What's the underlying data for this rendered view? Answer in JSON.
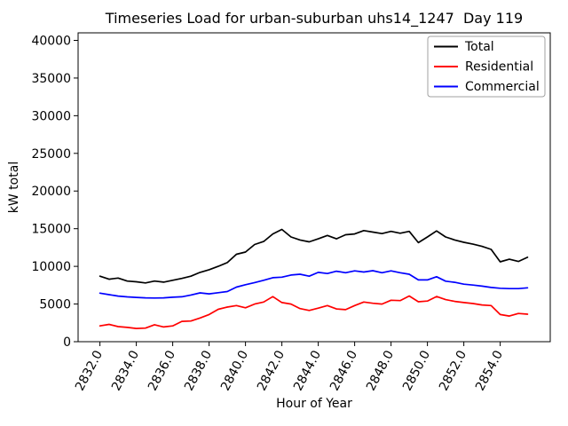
{
  "figure": {
    "background": "#ffffff"
  },
  "chart_data": {
    "type": "line",
    "title": "Timeseries Load for urban-suburban uhs14_1247  Day 119",
    "xlabel": "Hour of Year",
    "ylabel": "kW total",
    "xlim": [
      2830.8,
      2856.75
    ],
    "ylim": [
      0,
      41000
    ],
    "grid": false,
    "legend_position": "upper right",
    "xticks": {
      "values": [
        2832,
        2834,
        2836,
        2838,
        2840,
        2842,
        2844,
        2846,
        2848,
        2850,
        2852,
        2854
      ],
      "labels": [
        "2832.0",
        "2834.0",
        "2836.0",
        "2838.0",
        "2840.0",
        "2842.0",
        "2844.0",
        "2846.0",
        "2848.0",
        "2850.0",
        "2852.0",
        "2854.0"
      ]
    },
    "yticks": {
      "values": [
        0,
        5000,
        10000,
        15000,
        20000,
        25000,
        30000,
        35000,
        40000
      ],
      "labels": [
        "0",
        "5000",
        "10000",
        "15000",
        "20000",
        "25000",
        "30000",
        "35000",
        "40000"
      ]
    },
    "x": [
      2832,
      2832.5,
      2833,
      2833.5,
      2834,
      2834.5,
      2835,
      2835.5,
      2836,
      2836.5,
      2837,
      2837.5,
      2838,
      2838.5,
      2839,
      2839.5,
      2840,
      2840.5,
      2841,
      2841.5,
      2842,
      2842.5,
      2843,
      2843.5,
      2844,
      2844.5,
      2845,
      2845.5,
      2846,
      2846.5,
      2847,
      2847.5,
      2848,
      2848.5,
      2849,
      2849.5,
      2850,
      2850.5,
      2851,
      2851.5,
      2852,
      2852.5,
      2853,
      2853.5,
      2854,
      2854.5,
      2855,
      2855.5
    ],
    "series": [
      {
        "name": "Total",
        "color": "#000000",
        "values": [
          8700,
          8300,
          8450,
          8050,
          7950,
          7800,
          8050,
          7900,
          8150,
          8400,
          8700,
          9200,
          9550,
          10000,
          10500,
          11600,
          11900,
          12900,
          13300,
          14300,
          14900,
          13900,
          13500,
          13250,
          13650,
          14100,
          13650,
          14200,
          14300,
          14750,
          14550,
          14350,
          14650,
          14400,
          14650,
          13150,
          13900,
          14700,
          13900,
          13500,
          13200,
          12950,
          12650,
          12250,
          10600,
          10950,
          10650,
          11200
        ]
      },
      {
        "name": "Residential",
        "color": "#ff0000",
        "values": [
          2100,
          2300,
          2000,
          1900,
          1750,
          1800,
          2250,
          1950,
          2100,
          2700,
          2750,
          3150,
          3600,
          4300,
          4600,
          4800,
          4500,
          5000,
          5270,
          5980,
          5200,
          5000,
          4400,
          4150,
          4450,
          4800,
          4350,
          4250,
          4800,
          5270,
          5100,
          5000,
          5500,
          5450,
          6070,
          5300,
          5400,
          6000,
          5590,
          5350,
          5190,
          5070,
          4880,
          4800,
          3600,
          3400,
          3750,
          3650
        ]
      },
      {
        "name": "Commercial",
        "color": "#0000ff",
        "values": [
          6450,
          6250,
          6060,
          5950,
          5880,
          5820,
          5800,
          5820,
          5900,
          5960,
          6200,
          6480,
          6350,
          6500,
          6660,
          7250,
          7560,
          7850,
          8150,
          8500,
          8560,
          8850,
          8950,
          8700,
          9200,
          9050,
          9350,
          9150,
          9400,
          9250,
          9420,
          9150,
          9400,
          9150,
          8950,
          8200,
          8200,
          8630,
          8030,
          7880,
          7640,
          7520,
          7370,
          7200,
          7090,
          7050,
          7050,
          7150
        ]
      }
    ]
  }
}
